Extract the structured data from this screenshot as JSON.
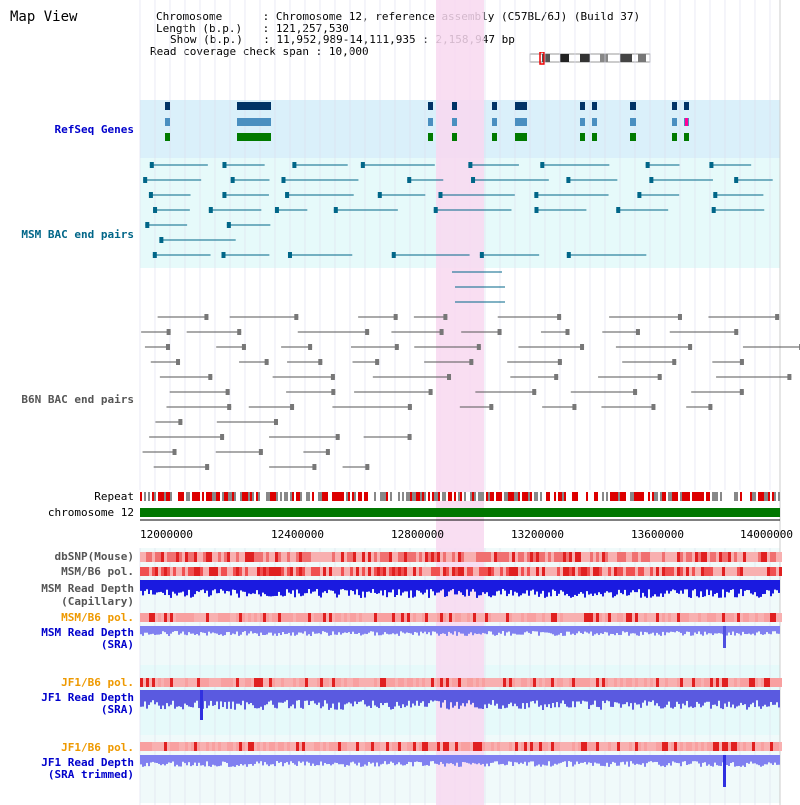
{
  "header": {
    "title": "Map View",
    "chromosome_key": "Chromosome",
    "chromosome_value": "Chromosome 12, reference assembly (C57BL/6J) (Build 37)",
    "length_key": "Length (b.p.)",
    "length_value": "121,257,530",
    "show_key": "Show (b.p.)",
    "show_value": "11,952,989-14,111,935 : 2,158,947 bp",
    "coverage_key": "Read coverage check span",
    "coverage_value": "10,000"
  },
  "tracks": {
    "refseq": "RefSeq Genes",
    "msm_bac": "MSM BAC end pairs",
    "b6n_bac": "B6N BAC end pairs",
    "repeat": "Repeat",
    "chromosome": "chromosome 12",
    "dbsnp": "dbSNP(Mouse)",
    "msm_b6_pol_1": "MSM/B6 pol.",
    "msm_depth_cap_1": "MSM Read Depth",
    "msm_depth_cap_2": "(Capillary)",
    "msm_b6_pol_2": "MSM/B6 pol.",
    "msm_depth_sra_1": "MSM Read Depth",
    "msm_depth_sra_2": "(SRA)",
    "jf1_b6_pol_1": "JF1/B6 pol.",
    "jf1_depth_sra_1": "JF1 Read Depth",
    "jf1_depth_sra_2": "(SRA)",
    "jf1_b6_pol_2": "JF1/B6 pol.",
    "jf1_depth_trim_1": "JF1 Read Depth",
    "jf1_depth_trim_2": "(SRA trimmed)"
  },
  "axis": {
    "ticks": [
      "12000000",
      "12400000",
      "12800000",
      "13200000",
      "13600000",
      "14000000"
    ]
  },
  "colors": {
    "refseq_bg": "#daf0fa",
    "msm_bg": "#e6fafa",
    "highlight": "#f8d8f0",
    "msm_label": "#006688",
    "b6n_label": "#555555",
    "refseq_label": "#0000cc",
    "pol_label": "#ee9900",
    "depth_label": "#0000cc",
    "chromosome_bar": "#007700"
  }
}
